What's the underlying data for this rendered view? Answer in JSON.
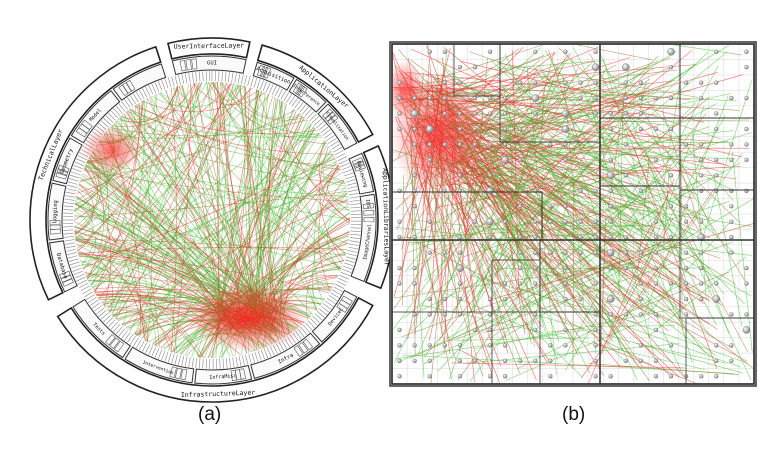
{
  "captions": {
    "a": "(a)",
    "b": "(b)"
  },
  "outer_layers": {
    "top": "UserInterfaceLayer",
    "right_top": "ApplicationLayer",
    "right": "ApplicationLibrariesLayer",
    "bottom": "InfrastructureLayer",
    "left": "TechnicalLayer"
  },
  "inner_modules": {
    "gui": "GUI",
    "acquisition": "Acquisition",
    "interference": "Interference",
    "visualization": "Visualization",
    "reviewing": "Reviewing",
    "ios": "IOS",
    "imagechannel": "ImageChannel",
    "infra": "Infra",
    "infra_misc": "InfraMisc",
    "intervention": "Intervention",
    "tests": "Tests",
    "devices": "DeviceC",
    "geometry": "Geometry",
    "database": "Database",
    "logging": "Logging",
    "model": "Model"
  },
  "colors": {
    "edge_green": "#3fbf2f",
    "edge_red": "#ee2a2a",
    "edge_mix": "#8a7a30",
    "frame": "#222222",
    "node_gray": "#9a9a9a"
  }
}
